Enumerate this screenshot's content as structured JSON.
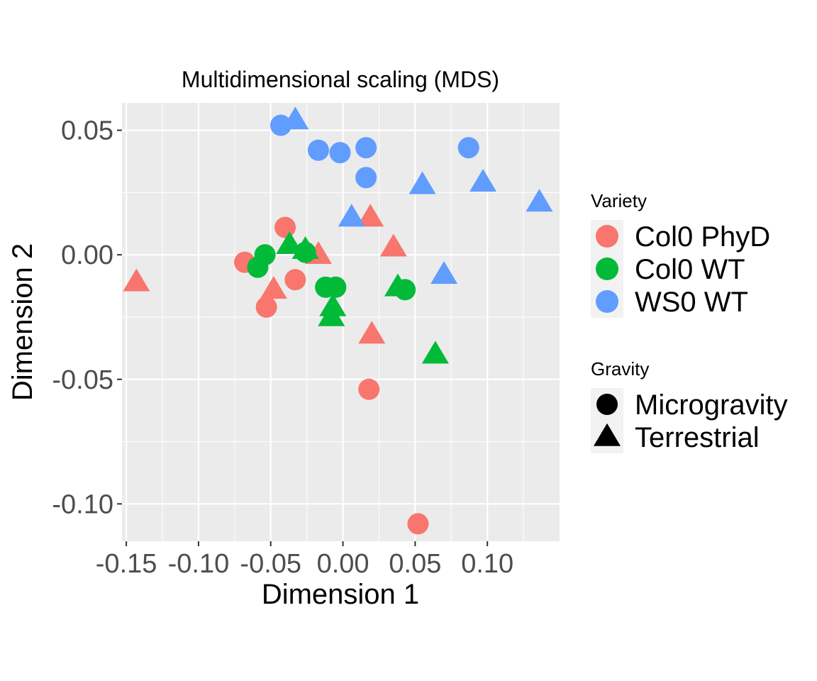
{
  "chart_data": {
    "type": "scatter",
    "title": "Multidimensional scaling (MDS)",
    "xlabel": "Dimension 1",
    "ylabel": "Dimension 2",
    "xlim": [
      -0.153,
      0.15
    ],
    "ylim": [
      -0.115,
      0.061
    ],
    "x_ticks": [
      -0.15,
      -0.1,
      -0.05,
      0.0,
      0.05,
      0.1
    ],
    "x_tick_labels": [
      "-0.15",
      "-0.10",
      "-0.05",
      "0.00",
      "0.05",
      "0.10"
    ],
    "y_ticks": [
      0.05,
      0.0,
      -0.05,
      -0.1
    ],
    "y_tick_labels": [
      "0.05",
      "0.00",
      "-0.05",
      "-0.10"
    ],
    "grid": true,
    "legend_position": "right",
    "legend": {
      "color_title": "Variety",
      "color_entries": [
        {
          "label": "Col0 PhyD",
          "color": "#F8766D"
        },
        {
          "label": "Col0 WT",
          "color": "#00BA38"
        },
        {
          "label": "WS0 WT",
          "color": "#619CFF"
        }
      ],
      "shape_title": "Gravity",
      "shape_entries": [
        {
          "label": "Microgravity",
          "shape": "circle"
        },
        {
          "label": "Terrestrial",
          "shape": "triangle"
        }
      ]
    },
    "series": [
      {
        "variety": "Col0 PhyD",
        "gravity": "Microgravity",
        "color": "#F8766D",
        "shape": "circle",
        "points": [
          {
            "x": -0.04,
            "y": 0.011
          },
          {
            "x": -0.068,
            "y": -0.003
          },
          {
            "x": -0.033,
            "y": -0.01
          },
          {
            "x": -0.053,
            "y": -0.021
          },
          {
            "x": 0.018,
            "y": -0.054
          },
          {
            "x": 0.052,
            "y": -0.108
          }
        ]
      },
      {
        "variety": "Col0 PhyD",
        "gravity": "Terrestrial",
        "color": "#F8766D",
        "shape": "triangle",
        "points": [
          {
            "x": 0.019,
            "y": 0.015
          },
          {
            "x": 0.035,
            "y": 0.003
          },
          {
            "x": -0.017,
            "y": 0.0
          },
          {
            "x": -0.143,
            "y": -0.011
          },
          {
            "x": -0.048,
            "y": -0.014
          },
          {
            "x": 0.02,
            "y": -0.032
          }
        ]
      },
      {
        "variety": "Col0 WT",
        "gravity": "Microgravity",
        "color": "#00BA38",
        "shape": "circle",
        "points": [
          {
            "x": -0.054,
            "y": 0.0
          },
          {
            "x": -0.059,
            "y": -0.005
          },
          {
            "x": -0.012,
            "y": -0.013
          },
          {
            "x": -0.005,
            "y": -0.013
          },
          {
            "x": 0.043,
            "y": -0.014
          },
          {
            "x": -0.026,
            "y": 0.001
          }
        ]
      },
      {
        "variety": "Col0 WT",
        "gravity": "Terrestrial",
        "color": "#00BA38",
        "shape": "triangle",
        "points": [
          {
            "x": -0.037,
            "y": 0.004
          },
          {
            "x": -0.026,
            "y": 0.002
          },
          {
            "x": 0.038,
            "y": -0.013
          },
          {
            "x": -0.007,
            "y": -0.021
          },
          {
            "x": -0.008,
            "y": -0.025
          },
          {
            "x": 0.064,
            "y": -0.04
          }
        ]
      },
      {
        "variety": "WS0 WT",
        "gravity": "Microgravity",
        "color": "#619CFF",
        "shape": "circle",
        "points": [
          {
            "x": -0.043,
            "y": 0.052
          },
          {
            "x": -0.017,
            "y": 0.042
          },
          {
            "x": -0.002,
            "y": 0.041
          },
          {
            "x": 0.016,
            "y": 0.043
          },
          {
            "x": 0.016,
            "y": 0.031
          },
          {
            "x": 0.087,
            "y": 0.043
          }
        ]
      },
      {
        "variety": "WS0 WT",
        "gravity": "Terrestrial",
        "color": "#619CFF",
        "shape": "triangle",
        "points": [
          {
            "x": -0.033,
            "y": 0.054
          },
          {
            "x": 0.055,
            "y": 0.028
          },
          {
            "x": 0.097,
            "y": 0.029
          },
          {
            "x": 0.136,
            "y": 0.021
          },
          {
            "x": 0.006,
            "y": 0.015
          },
          {
            "x": 0.07,
            "y": -0.008
          }
        ]
      }
    ]
  }
}
